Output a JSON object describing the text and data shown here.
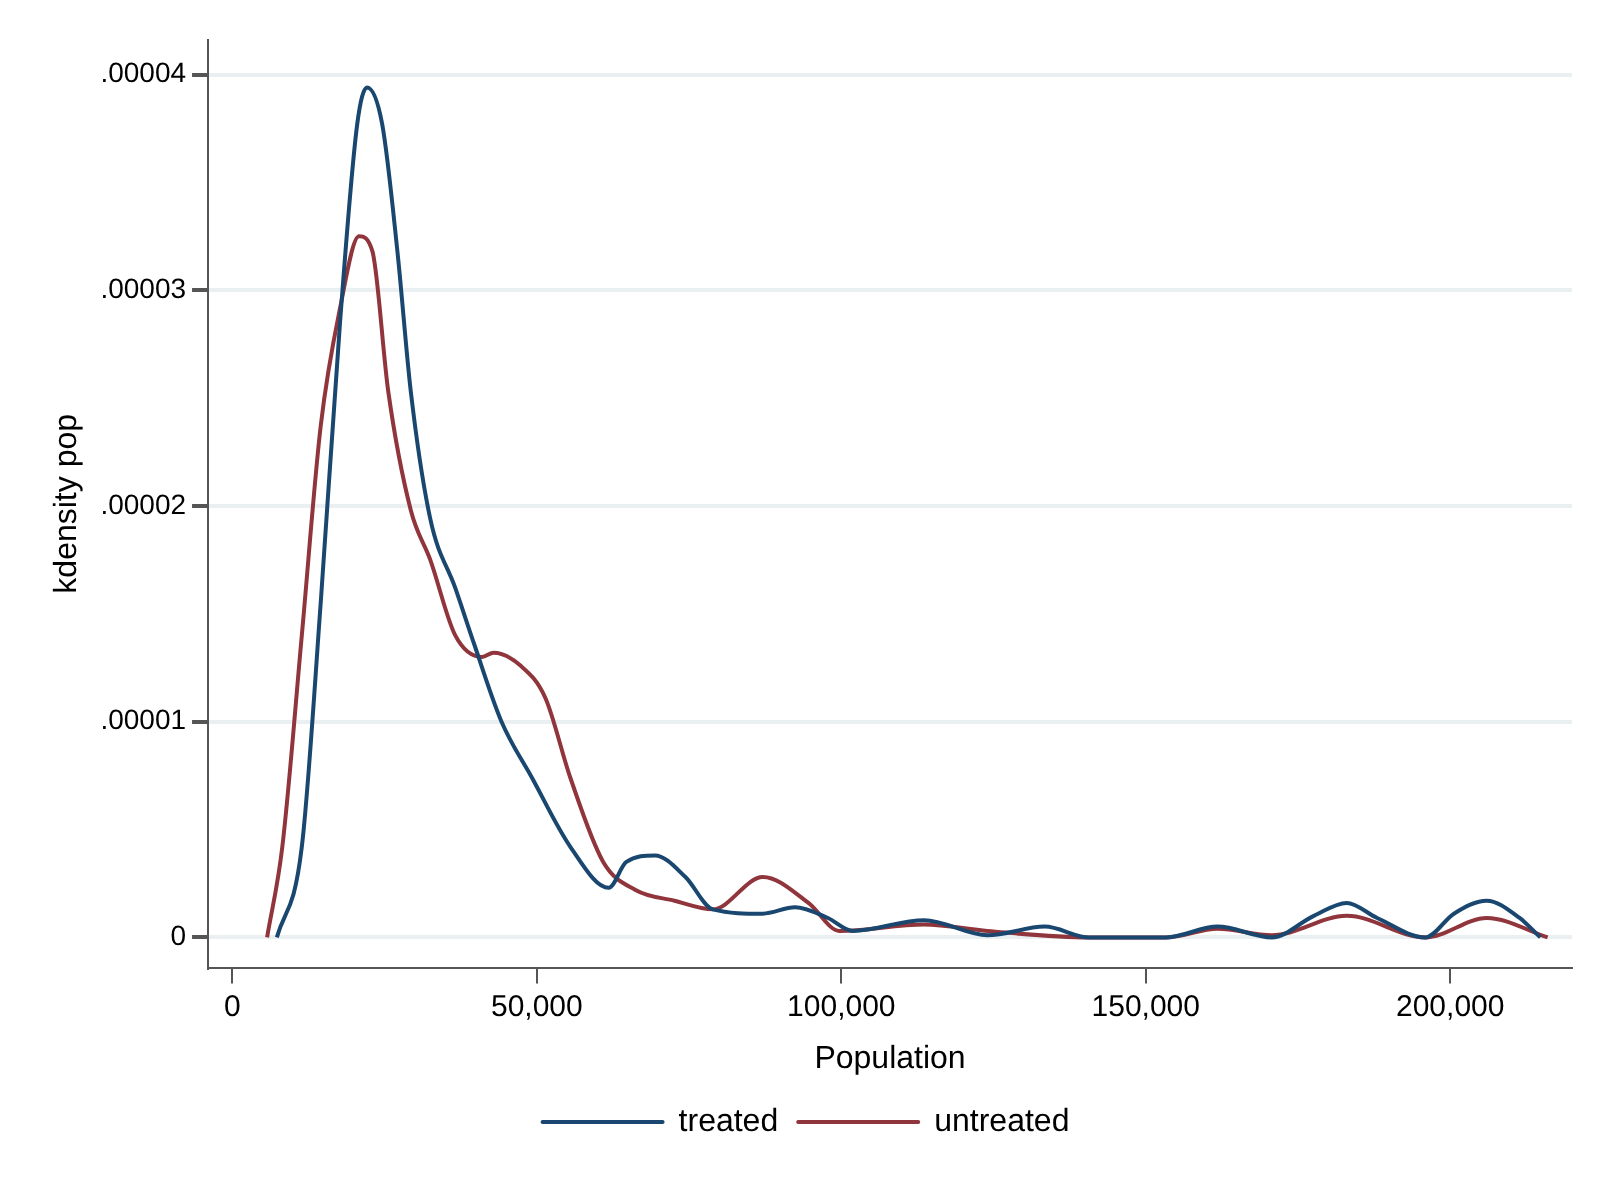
{
  "chart_data": {
    "type": "line",
    "xlabel": "Population",
    "ylabel": "kdensity pop",
    "xlim": [
      -4000,
      220000
    ],
    "xticks": [
      0,
      {
        "value": 50000,
        "label": "50,000"
      },
      {
        "value": 100000,
        "label": "100,000"
      },
      {
        "value": 150000,
        "label": "150,000"
      },
      {
        "value": 200000,
        "label": "200,000"
      }
    ],
    "ylim": [
      -1.4e-06,
      4.16e-05
    ],
    "yticks": [
      0,
      {
        "value": 1e-05,
        "label": ".00001"
      },
      {
        "value": 2e-05,
        "label": ".00002"
      },
      {
        "value": 3e-05,
        "label": ".00003"
      },
      {
        "value": 4e-05,
        "label": ".00004"
      }
    ],
    "grid": "y",
    "legend": "bottom",
    "marker": "none",
    "series": [
      {
        "name": "treated",
        "color": "#1a476f",
        "x": [
          7300,
          11400,
          14500,
          17700,
          20500,
          22100,
          24600,
          27100,
          29300,
          32500,
          36600,
          39700,
          44200,
          49200,
          55500,
          61800,
          64700,
          69400,
          74400,
          78900,
          87100,
          92400,
          97800,
          101900,
          113600,
          124000,
          133400,
          140700,
          153300,
          161800,
          170700,
          177600,
          183000,
          188000,
          195900,
          200600,
          206000,
          211400,
          214800
        ],
        "values": [
          0,
          4.2e-06,
          1.55e-05,
          2.86e-05,
          3.77e-05,
          3.94e-05,
          3.77e-05,
          3.18e-05,
          2.53e-05,
          1.94e-05,
          1.62e-05,
          1.36e-05,
          1e-05,
          7.4e-06,
          4.2e-06,
          2.3e-06,
          3.5e-06,
          3.8e-06,
          2.8e-06,
          1.3e-06,
          1.1e-06,
          1.4e-06,
          9e-07,
          3e-07,
          8e-07,
          1e-07,
          5e-07,
          0,
          0,
          5e-07,
          0,
          1e-06,
          1.6e-06,
          9e-07,
          0,
          1.1e-06,
          1.7e-06,
          9e-07,
          0
        ]
      },
      {
        "name": "untreated",
        "color": "#90353b",
        "x": [
          5700,
          8200,
          11400,
          14500,
          17700,
          20800,
          23000,
          25600,
          29300,
          32500,
          36600,
          41000,
          42900,
          47300,
          51400,
          55500,
          60900,
          66200,
          72600,
          78900,
          87100,
          94600,
          99700,
          113600,
          124000,
          140700,
          153300,
          161800,
          170700,
          183000,
          195900,
          206000,
          216000
        ],
        "values": [
          0,
          4.2e-06,
          1.4e-05,
          2.37e-05,
          2.92e-05,
          3.25e-05,
          3.18e-05,
          2.53e-05,
          1.98e-05,
          1.75e-05,
          1.4e-05,
          1.3e-05,
          1.32e-05,
          1.26e-05,
          1.11e-05,
          7.4e-06,
          3.5e-06,
          2.2e-06,
          1.7e-06,
          1.3e-06,
          2.8e-06,
          1.6e-06,
          3e-07,
          6e-07,
          3e-07,
          0,
          0,
          4e-07,
          1e-07,
          1e-06,
          0,
          9e-07,
          0
        ]
      }
    ]
  }
}
